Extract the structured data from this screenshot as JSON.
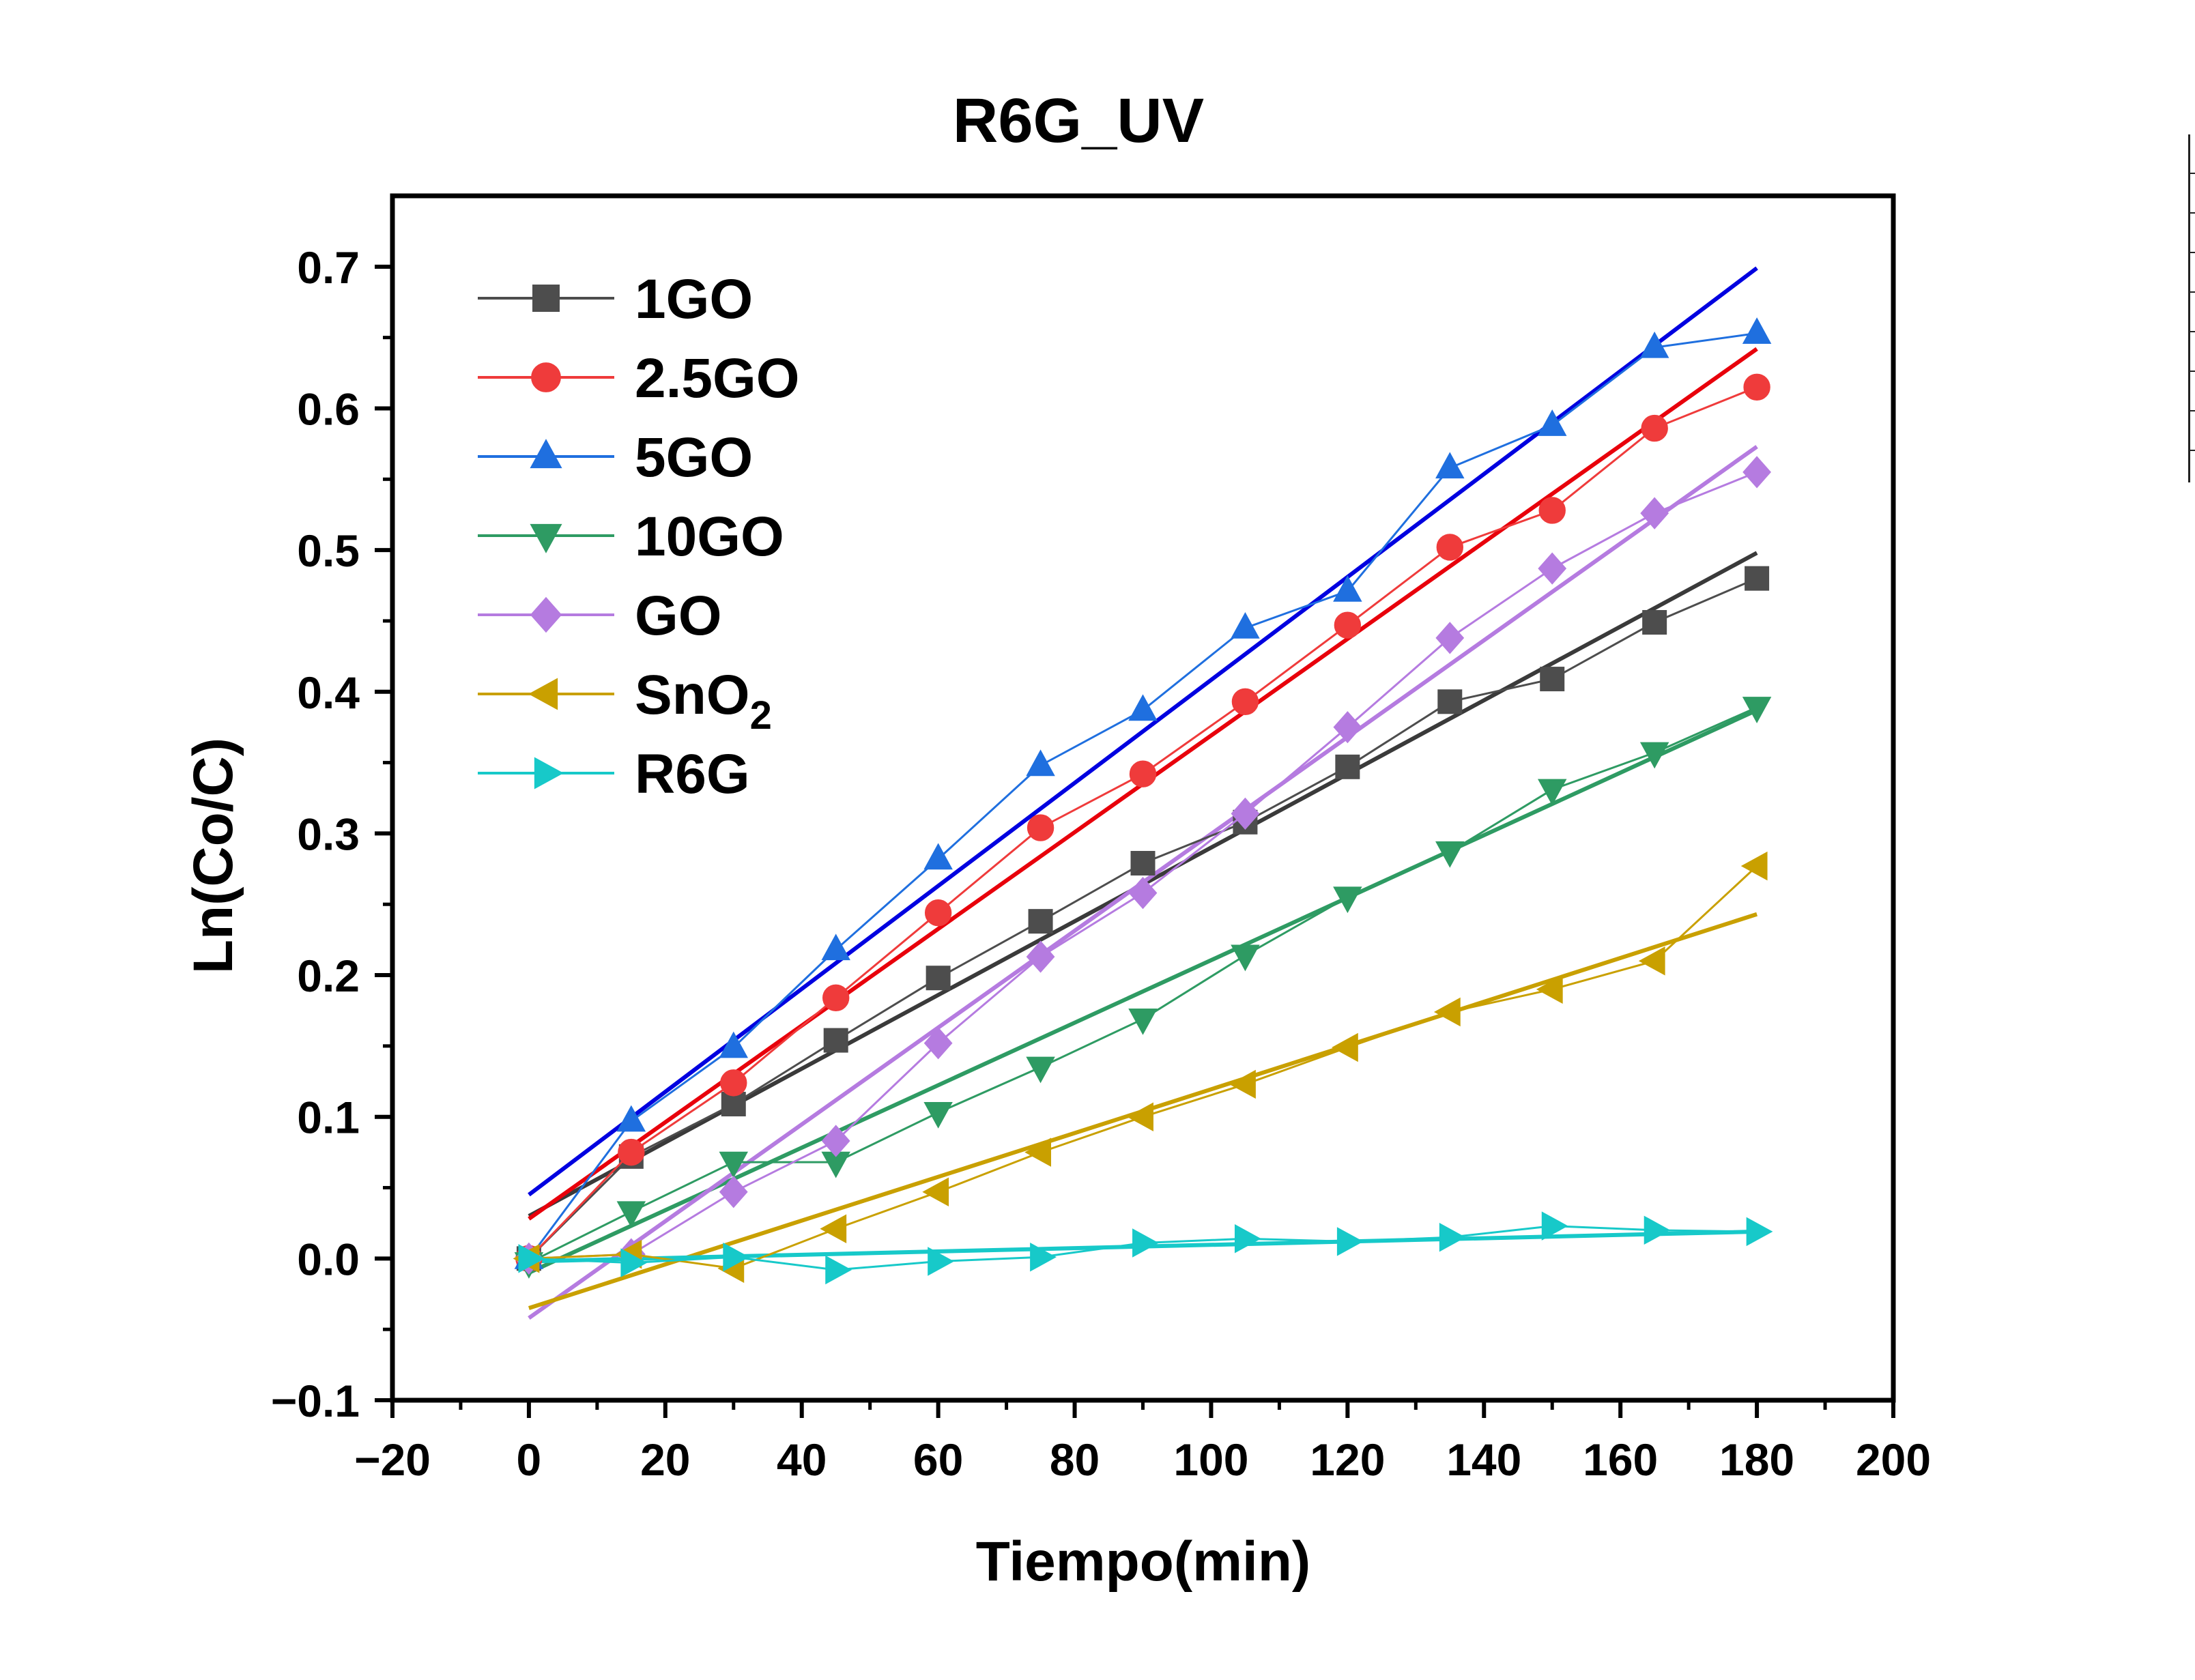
{
  "chart_data": {
    "type": "line",
    "title": "R6G_UV",
    "xlabel": "Tiempo(min)",
    "ylabel": "Ln(Co/C)",
    "xlim": [
      -20,
      200
    ],
    "ylim": [
      -0.1,
      0.75
    ],
    "xticks": [
      -20,
      0,
      20,
      40,
      60,
      80,
      100,
      120,
      140,
      160,
      180,
      200
    ],
    "xtick_labels": [
      "−20",
      "0",
      "20",
      "40",
      "60",
      "80",
      "100",
      "120",
      "140",
      "160",
      "180",
      "200"
    ],
    "yticks": [
      -0.1,
      0.0,
      0.1,
      0.2,
      0.3,
      0.4,
      0.5,
      0.6,
      0.7
    ],
    "ytick_labels": [
      "−0.1",
      "0.0",
      "0.1",
      "0.2",
      "0.3",
      "0.4",
      "0.5",
      "0.6",
      "0.7"
    ],
    "grid": false,
    "legend_position": "top-left",
    "x": [
      0,
      15,
      30,
      45,
      60,
      75,
      90,
      105,
      120,
      135,
      150,
      165,
      180
    ],
    "series": [
      {
        "name": "1GO",
        "marker": "square",
        "color": "#4d4d4d",
        "values": [
          0.0,
          0.072,
          0.109,
          0.154,
          0.198,
          0.238,
          0.279,
          0.308,
          0.347,
          0.393,
          0.409,
          0.449,
          0.48
        ],
        "fit": [
          0.03,
          0.498
        ]
      },
      {
        "name": "2.5GO",
        "marker": "circle",
        "color": "#ef3b3b",
        "values": [
          0.0,
          0.075,
          0.124,
          0.184,
          0.244,
          0.304,
          0.342,
          0.393,
          0.447,
          0.502,
          0.528,
          0.586,
          0.615
        ],
        "fit": [
          0.028,
          0.642
        ]
      },
      {
        "name": "5GO",
        "marker": "triangle-up",
        "color": "#1f6fdf",
        "values": [
          0.0,
          0.097,
          0.149,
          0.218,
          0.282,
          0.348,
          0.387,
          0.445,
          0.471,
          0.558,
          0.588,
          0.643,
          0.653
        ],
        "fit": [
          0.045,
          0.699
        ]
      },
      {
        "name": "10GO",
        "marker": "triangle-down",
        "color": "#2e9b63",
        "values": [
          -0.003,
          0.033,
          0.068,
          0.068,
          0.103,
          0.135,
          0.169,
          0.214,
          0.255,
          0.287,
          0.331,
          0.357,
          0.389
        ],
        "fit": [
          -0.01,
          0.387
        ]
      },
      {
        "name": "GO",
        "marker": "diamond",
        "color": "#b57be0",
        "values": [
          0.0,
          0.003,
          0.047,
          0.083,
          0.152,
          0.213,
          0.258,
          0.314,
          0.375,
          0.438,
          0.487,
          0.526,
          0.555
        ],
        "fit": [
          -0.042,
          0.573
        ]
      },
      {
        "name": "SnO",
        "name_sub": "2",
        "marker": "triangle-left",
        "color": "#c9a000",
        "values": [
          0.0,
          0.003,
          -0.007,
          0.021,
          0.047,
          0.075,
          0.1,
          0.123,
          0.149,
          0.174,
          0.19,
          0.21,
          0.277
        ],
        "fit": [
          -0.035,
          0.243
        ]
      },
      {
        "name": "R6G",
        "marker": "triangle-right",
        "color": "#17c9c9",
        "values": [
          0.0,
          -0.003,
          0.001,
          -0.008,
          -0.002,
          0.001,
          0.011,
          0.014,
          0.012,
          0.015,
          0.023,
          0.02,
          0.019
        ],
        "fit": [
          -0.002,
          0.019
        ]
      }
    ]
  }
}
